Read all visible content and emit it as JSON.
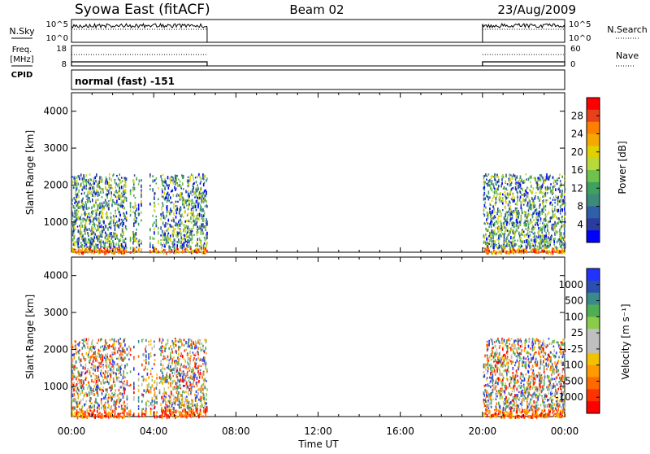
{
  "header": {
    "station": "Syowa East (fitACF)",
    "beam": "Beam 02",
    "date": "23/Aug/2009"
  },
  "top_panels": {
    "nsky": {
      "label": "N.Sky",
      "ticks": [
        "10^5",
        "10^0"
      ]
    },
    "nsearch": {
      "label": "N.Search",
      "ticks": [
        "10^5",
        "10^0"
      ]
    },
    "freq": {
      "label_line1": "Freq.",
      "label_line2": "[MHz]",
      "ticks": [
        "18",
        "8"
      ]
    },
    "nave": {
      "label": "Nave",
      "ticks": [
        "60",
        "0"
      ]
    },
    "cpid": {
      "label": "CPID",
      "mode_text": "normal (fast) -151"
    }
  },
  "axes": {
    "ylabel": "Slant Range [km]",
    "yticks": [
      "4000",
      "3000",
      "2000",
      "1000"
    ],
    "xlabel": "Time UT",
    "xticks": [
      "00:00",
      "04:00",
      "08:00",
      "12:00",
      "16:00",
      "20:00",
      "00:00"
    ]
  },
  "colorbars": {
    "power": {
      "title": "Power [dB]",
      "labels": [
        "28",
        "24",
        "20",
        "16",
        "12",
        "8",
        "4"
      ],
      "colors": [
        "#ff0000",
        "#e8401a",
        "#ff7f00",
        "#f5a800",
        "#e0d000",
        "#b9d83a",
        "#6fc24c",
        "#3fa060",
        "#3c8a7a",
        "#2f5fa8",
        "#2a3c9f",
        "#0000ff"
      ]
    },
    "velocity": {
      "title": "Velocity [m s⁻¹]",
      "labels": [
        "1000",
        "500",
        "100",
        "25",
        "-25",
        "-100",
        "-500",
        "-1000"
      ],
      "colors": [
        "#2233ff",
        "#2b4fb0",
        "#3a8a8a",
        "#4fae55",
        "#8acb4a",
        "#bfbfbf",
        "#bfbfbf",
        "#f2c100",
        "#ff9a00",
        "#ff6a00",
        "#ff3300",
        "#ff0000"
      ]
    }
  },
  "chart_data": {
    "type": "heatmap",
    "title": "Syowa East (fitACF)",
    "xlabel": "Time UT",
    "ylabel": "Slant Range [km]",
    "xlim_hours": [
      0,
      24
    ],
    "ylim_km": [
      180,
      4500
    ],
    "data_segments_hours": [
      [
        0.0,
        6.6
      ],
      [
        20.0,
        24.0
      ]
    ],
    "scatter_max_range_km": 2300,
    "nsky_level": "~10^5",
    "freq_mhz_level": 10,
    "nave_level": 28
  }
}
